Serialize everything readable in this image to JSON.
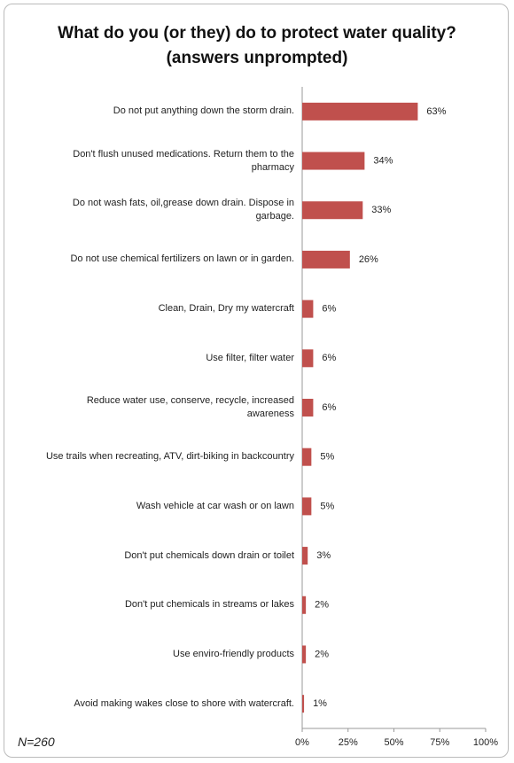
{
  "chart_data": {
    "type": "barh",
    "title": "What do you (or they) do to protect water quality? (answers unprompted)",
    "categories": [
      "Do not put anything down the storm drain.",
      "Don't flush unused medications. Return them to the pharmacy",
      "Do not wash fats, oil,grease down drain. Dispose in garbage.",
      "Do not use chemical fertilizers on lawn or in garden.",
      "Clean, Drain, Dry my watercraft",
      "Use filter, filter water",
      "Reduce water use, conserve, recycle, increased awareness",
      "Use trails when recreating, ATV, dirt-biking in backcountry",
      "Wash vehicle at car wash or on lawn",
      "Don't put chemicals down drain or toilet",
      "Don't put chemicals in streams or lakes",
      "Use enviro-friendly products",
      "Avoid making wakes close to shore with watercraft."
    ],
    "values": [
      63,
      34,
      33,
      26,
      6,
      6,
      6,
      5,
      5,
      3,
      2,
      2,
      1
    ],
    "value_labels": [
      "63%",
      "34%",
      "33%",
      "26%",
      "6%",
      "6%",
      "6%",
      "5%",
      "5%",
      "3%",
      "2%",
      "2%",
      "1%"
    ],
    "color": "#c0504d",
    "xlim": [
      0,
      100
    ],
    "xticks": [
      {
        "value": 0,
        "label": "0%"
      },
      {
        "value": 25,
        "label": "25%"
      },
      {
        "value": 50,
        "label": "50%"
      },
      {
        "value": 75,
        "label": "75%"
      },
      {
        "value": 100,
        "label": "100%"
      }
    ],
    "note": "N=260"
  }
}
